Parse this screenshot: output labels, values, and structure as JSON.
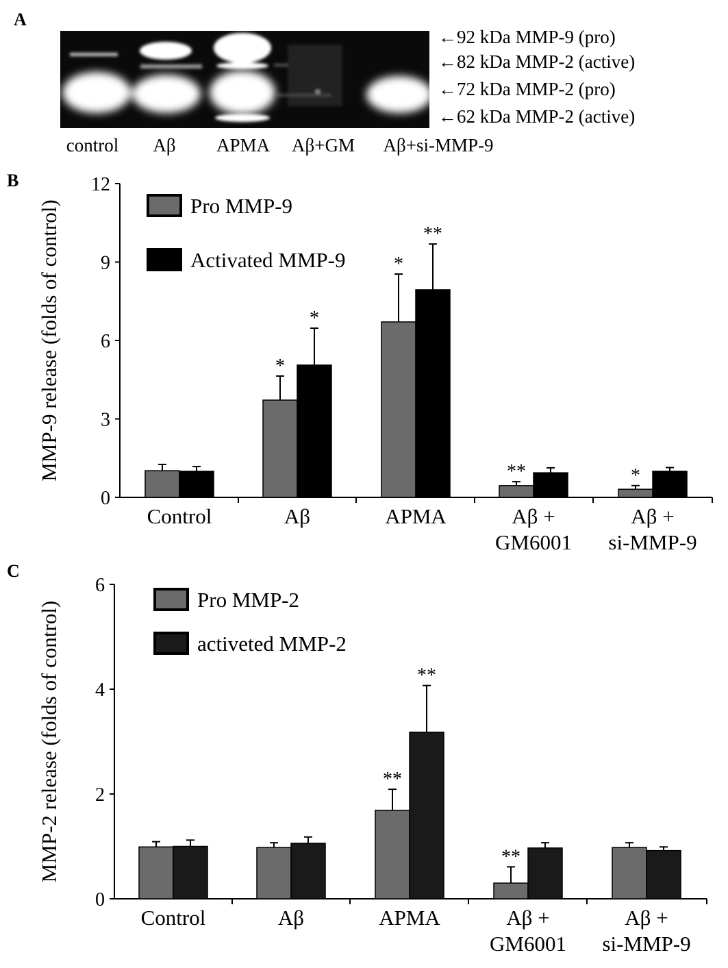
{
  "panels": {
    "a": "A",
    "b": "B",
    "c": "C"
  },
  "gel": {
    "lanes": [
      "control",
      "Aβ",
      "APMA",
      "Aβ+GM",
      "Aβ+si-MMP-9"
    ],
    "band_labels": [
      "←92 kDa MMP-9 (pro)",
      "←82 kDa MMP-2 (active)",
      "←72 kDa MMP-2 (pro)",
      "←62 kDa MMP-2 (active)"
    ]
  },
  "colors": {
    "pro": "#6b6b6b",
    "active": "#000000",
    "active_c": "#1a1a1a"
  },
  "chart_data": [
    {
      "type": "bar",
      "ylabel": "MMP-9 release (folds of control)",
      "ylim": [
        0,
        12
      ],
      "yticks": [
        "0",
        "3",
        "6",
        "9",
        "12"
      ],
      "categories": [
        [
          "Control"
        ],
        [
          "Aβ"
        ],
        [
          "APMA"
        ],
        [
          "Aβ +",
          "GM6001"
        ],
        [
          "Aβ +",
          "si-MMP-9"
        ]
      ],
      "legend": "top-left",
      "series": [
        {
          "name": "Pro MMP-9",
          "values": [
            1.02,
            3.72,
            6.71,
            0.45,
            0.31
          ],
          "errors": [
            0.24,
            0.92,
            1.83,
            0.15,
            0.14
          ],
          "stars": [
            "",
            "*",
            "*",
            "**",
            "*"
          ]
        },
        {
          "name": "Activated MMP-9",
          "values": [
            1.0,
            5.06,
            7.94,
            0.94,
            1.0
          ],
          "errors": [
            0.18,
            1.41,
            1.75,
            0.19,
            0.14
          ],
          "stars": [
            "",
            "*",
            "**",
            "",
            ""
          ]
        }
      ]
    },
    {
      "type": "bar",
      "ylabel": "MMP-2 release (folds of control)",
      "ylim": [
        0,
        6
      ],
      "yticks": [
        "0",
        "2",
        "4",
        "6"
      ],
      "categories": [
        [
          "Control"
        ],
        [
          "Aβ"
        ],
        [
          "APMA"
        ],
        [
          "Aβ +",
          "GM6001"
        ],
        [
          "Aβ +",
          "si-MMP-9"
        ]
      ],
      "legend": "top-left",
      "series": [
        {
          "name": "Pro MMP-2",
          "values": [
            0.99,
            0.98,
            1.69,
            0.3,
            0.98
          ],
          "errors": [
            0.1,
            0.09,
            0.4,
            0.31,
            0.09
          ],
          "stars": [
            "",
            "",
            "**",
            "**",
            ""
          ]
        },
        {
          "name": "activeted MMP-2",
          "values": [
            1.0,
            1.06,
            3.18,
            0.97,
            0.92
          ],
          "errors": [
            0.12,
            0.12,
            0.89,
            0.1,
            0.07
          ],
          "stars": [
            "",
            "",
            "**",
            "",
            ""
          ]
        }
      ]
    }
  ]
}
